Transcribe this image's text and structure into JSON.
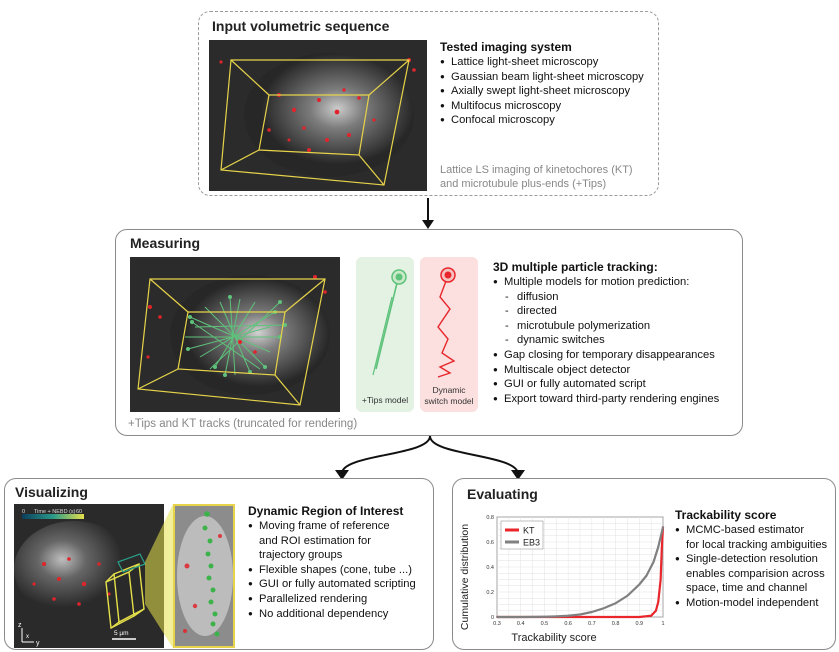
{
  "input": {
    "title": "Input volumetric sequence",
    "systems_title": "Tested imaging system",
    "systems": [
      "Lattice light-sheet microscopy",
      "Gaussian beam light-sheet microscopy",
      "Axially swept light-sheet microscopy",
      "Multifocus microscopy",
      "Confocal microscopy"
    ],
    "caption_line1": "Lattice LS imaging of kinetochores (KT)",
    "caption_line2": "and microtubule plus-ends (+Tips)"
  },
  "measuring": {
    "title": "Measuring",
    "tracking_title": "3D multiple particle tracking:",
    "items": [
      {
        "text": "Multiple models for motion prediction:",
        "sub": false
      },
      {
        "text": "diffusion",
        "sub": true
      },
      {
        "text": "directed",
        "sub": true
      },
      {
        "text": "microtubule polymerization",
        "sub": true
      },
      {
        "text": "dynamic switches",
        "sub": true
      },
      {
        "text": "Gap closing for temporary disappearances",
        "sub": false
      },
      {
        "text": "Multiscale object detector",
        "sub": false
      },
      {
        "text": "GUI or fully automated script",
        "sub": false
      },
      {
        "text": "Export toward third-party rendering engines",
        "sub": false
      }
    ],
    "tips_model_label": "+Tips model",
    "switch_model_line1": "Dynamic",
    "switch_model_line2": "switch model",
    "caption": "+Tips and KT tracks (truncated for rendering)"
  },
  "visualizing": {
    "title": "Visualizing",
    "roi_title": "Dynamic Region of Interest",
    "items": [
      "Moving frame of reference",
      "and ROI estimation for",
      "trajectory groups",
      "Flexible shapes (cone, tube ...)",
      "GUI or fully automated scripting",
      "Parallelized rendering",
      "No additional dependency"
    ],
    "item_bullets": [
      true,
      false,
      false,
      true,
      true,
      true,
      true
    ],
    "colorbar_min": "0",
    "colorbar_label": "Time + NEBD (s)",
    "colorbar_max": "60",
    "scalebar": "5 µm",
    "axis_x": "x",
    "axis_y": "y",
    "axis_z": "z"
  },
  "evaluating": {
    "title": "Evaluating",
    "score_title": "Trackability score",
    "items": [
      "MCMC-based estimator",
      "for local tracking ambiguities",
      "Single-detection resolution",
      "enables comparision across",
      "space, time and channel",
      "Motion-model independent"
    ],
    "item_bullets": [
      true,
      false,
      true,
      false,
      false,
      true
    ]
  },
  "colors": {
    "kt": "#e8262b",
    "eb3": "#808080",
    "tips_green": "#5ec27a",
    "model_green_bg": "#e3f2e3",
    "model_red_bg": "#fbe0df",
    "box_yellow": "#e6d34a"
  },
  "chart_data": {
    "type": "line",
    "xlabel": "Trackability score",
    "ylabel": "Cumulative distribution",
    "xlim": [
      0.3,
      1.0
    ],
    "ylim": [
      0,
      0.8
    ],
    "xticks": [
      "0.3",
      "0.4",
      "0.5",
      "0.6",
      "0.7",
      "0.8",
      "0.9",
      "1"
    ],
    "yticks": [
      "0",
      "0.2",
      "0.4",
      "0.6",
      "0.8"
    ],
    "grid": true,
    "legend_placement": "top-left",
    "series": [
      {
        "name": "KT",
        "x": [
          0.3,
          0.9,
          0.95,
          0.97,
          0.98,
          0.99,
          0.995,
          1.0
        ],
        "y": [
          0.0,
          0.0,
          0.01,
          0.05,
          0.12,
          0.3,
          0.55,
          0.72
        ]
      },
      {
        "name": "EB3",
        "x": [
          0.3,
          0.4,
          0.5,
          0.55,
          0.6,
          0.65,
          0.7,
          0.75,
          0.8,
          0.85,
          0.9,
          0.93,
          0.96,
          0.98,
          1.0
        ],
        "y": [
          0.0,
          0.0,
          0.002,
          0.005,
          0.01,
          0.02,
          0.04,
          0.07,
          0.11,
          0.17,
          0.26,
          0.33,
          0.44,
          0.56,
          0.72
        ]
      }
    ]
  }
}
